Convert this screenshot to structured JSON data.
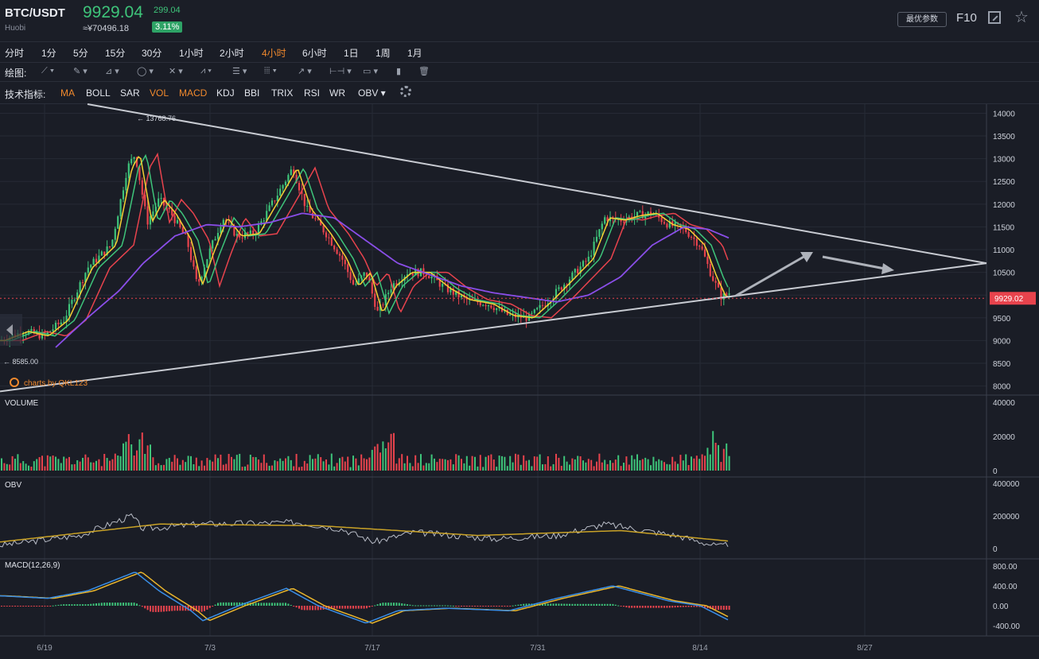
{
  "header": {
    "pair": "BTC/USDT",
    "exchange": "Huobi",
    "price": "9929.04",
    "cny_price": "≈¥70496.18",
    "change": "299.04",
    "change_pct": "3.11%",
    "optimal_params_label": "最优参数",
    "f10_label": "F10",
    "expand_icon": "expand-icon",
    "favorite_icon": "star-icon"
  },
  "intervals": {
    "items": [
      "分时",
      "1分",
      "5分",
      "15分",
      "30分",
      "1小时",
      "2小时",
      "4小时",
      "6小时",
      "1日",
      "1周",
      "1月"
    ],
    "active": "4小时"
  },
  "drawing": {
    "label": "绘图:"
  },
  "indicators": {
    "label": "技术指标:",
    "items": [
      "MA",
      "BOLL",
      "SAR",
      "VOL",
      "MACD",
      "KDJ",
      "BBI",
      "TRIX",
      "RSI",
      "WR",
      "OBV"
    ],
    "active": [
      "MA",
      "VOL",
      "MACD"
    ]
  },
  "chart_data": [
    {
      "type": "candlestick",
      "title": "",
      "annotations": {
        "high_label": "← 13768.76",
        "low_label": "← 8585.00",
        "watermark": "charts by QKL123",
        "current_price_tag": "9929.02"
      },
      "y_ticks": [
        14000,
        13500,
        13000,
        12500,
        12000,
        11500,
        11000,
        10500,
        10000,
        9500,
        9000,
        8500,
        8000
      ],
      "ylim": [
        7800,
        14200
      ],
      "x_ticks": [
        "6/19",
        "7/3",
        "7/17",
        "7/31",
        "8/14",
        "8/27"
      ],
      "price_path": [
        {
          "x": 0,
          "y": 9000
        },
        {
          "x": 30,
          "y": 9200
        },
        {
          "x": 55,
          "y": 9100
        },
        {
          "x": 80,
          "y": 9450
        },
        {
          "x": 110,
          "y": 10600
        },
        {
          "x": 140,
          "y": 11100
        },
        {
          "x": 160,
          "y": 12800
        },
        {
          "x": 170,
          "y": 13100
        },
        {
          "x": 185,
          "y": 11600
        },
        {
          "x": 200,
          "y": 12100
        },
        {
          "x": 215,
          "y": 11800
        },
        {
          "x": 235,
          "y": 11200
        },
        {
          "x": 248,
          "y": 10200
        },
        {
          "x": 262,
          "y": 10900
        },
        {
          "x": 280,
          "y": 11700
        },
        {
          "x": 298,
          "y": 11300
        },
        {
          "x": 320,
          "y": 11350
        },
        {
          "x": 345,
          "y": 12100
        },
        {
          "x": 368,
          "y": 12800
        },
        {
          "x": 385,
          "y": 11900
        },
        {
          "x": 410,
          "y": 11350
        },
        {
          "x": 430,
          "y": 10800
        },
        {
          "x": 445,
          "y": 10200
        },
        {
          "x": 460,
          "y": 10500
        },
        {
          "x": 475,
          "y": 9600
        },
        {
          "x": 492,
          "y": 10200
        },
        {
          "x": 512,
          "y": 10500
        },
        {
          "x": 535,
          "y": 10500
        },
        {
          "x": 560,
          "y": 10150
        },
        {
          "x": 585,
          "y": 9900
        },
        {
          "x": 615,
          "y": 9800
        },
        {
          "x": 640,
          "y": 9550
        },
        {
          "x": 665,
          "y": 9500
        },
        {
          "x": 690,
          "y": 9900
        },
        {
          "x": 715,
          "y": 10350
        },
        {
          "x": 740,
          "y": 10800
        },
        {
          "x": 760,
          "y": 11700
        },
        {
          "x": 780,
          "y": 11650
        },
        {
          "x": 800,
          "y": 11750
        },
        {
          "x": 820,
          "y": 11800
        },
        {
          "x": 840,
          "y": 11550
        },
        {
          "x": 860,
          "y": 11450
        },
        {
          "x": 880,
          "y": 11100
        },
        {
          "x": 895,
          "y": 10400
        },
        {
          "x": 907,
          "y": 9950
        },
        {
          "x": 917,
          "y": 10050
        }
      ],
      "ma_slow_path": [
        {
          "x": 70,
          "y": 8850
        },
        {
          "x": 110,
          "y": 9500
        },
        {
          "x": 150,
          "y": 10100
        },
        {
          "x": 180,
          "y": 10700
        },
        {
          "x": 220,
          "y": 11300
        },
        {
          "x": 260,
          "y": 11550
        },
        {
          "x": 300,
          "y": 11500
        },
        {
          "x": 340,
          "y": 11600
        },
        {
          "x": 380,
          "y": 11800
        },
        {
          "x": 420,
          "y": 11700
        },
        {
          "x": 460,
          "y": 11200
        },
        {
          "x": 500,
          "y": 10700
        },
        {
          "x": 540,
          "y": 10450
        },
        {
          "x": 580,
          "y": 10200
        },
        {
          "x": 620,
          "y": 10050
        },
        {
          "x": 660,
          "y": 9950
        },
        {
          "x": 700,
          "y": 9850
        },
        {
          "x": 740,
          "y": 10000
        },
        {
          "x": 780,
          "y": 10400
        },
        {
          "x": 820,
          "y": 11100
        },
        {
          "x": 860,
          "y": 11500
        },
        {
          "x": 890,
          "y": 11450
        },
        {
          "x": 917,
          "y": 11250
        }
      ],
      "trendlines": [
        {
          "from": {
            "x": 110,
            "y": 14200
          },
          "to": {
            "x": 1240,
            "y": 10700
          }
        },
        {
          "from": {
            "x": 0,
            "y": 7880
          },
          "to": {
            "x": 1240,
            "y": 10700
          }
        }
      ]
    },
    {
      "type": "bar",
      "title": "VOLUME",
      "y_ticks": [
        40000,
        20000,
        0
      ]
    },
    {
      "type": "line",
      "title": "OBV",
      "y_ticks": [
        400000,
        200000,
        0
      ]
    },
    {
      "type": "bar",
      "title": "MACD(12,26,9)",
      "y_ticks": [
        "800.00",
        "400.00",
        "0.00",
        "-400.00"
      ]
    }
  ],
  "colors": {
    "up": "#3ec47a",
    "down": "#e8434d",
    "ma_fast": "#f5d033",
    "ma_mid": "#3ec47a",
    "ma_long": "#e8434d",
    "ma_slow": "#8a4ee8",
    "obv_ma": "#c9a227",
    "macd_dif": "#3a8ee6",
    "macd_dea": "#e9b52c"
  }
}
